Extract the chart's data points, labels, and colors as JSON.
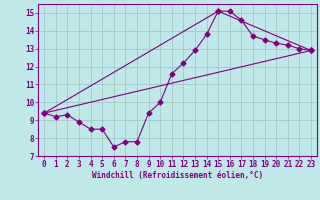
{
  "title": "",
  "xlabel": "Windchill (Refroidissement éolien,°C)",
  "bg_color": "#c0e8e8",
  "line_color": "#800080",
  "grid_color": "#9fbfbf",
  "xlim": [
    -0.5,
    23.5
  ],
  "ylim": [
    7,
    15.5
  ],
  "yticks": [
    7,
    8,
    9,
    10,
    11,
    12,
    13,
    14,
    15
  ],
  "xticks": [
    0,
    1,
    2,
    3,
    4,
    5,
    6,
    7,
    8,
    9,
    10,
    11,
    12,
    13,
    14,
    15,
    16,
    17,
    18,
    19,
    20,
    21,
    22,
    23
  ],
  "series1_x": [
    0,
    1,
    2,
    3,
    4,
    5,
    6,
    7,
    8,
    9,
    10,
    11,
    12,
    13,
    14,
    15,
    16,
    17,
    18,
    19,
    20,
    21,
    22,
    23
  ],
  "series1_y": [
    9.4,
    9.2,
    9.3,
    8.9,
    8.5,
    8.5,
    7.5,
    7.8,
    7.8,
    9.4,
    10.0,
    11.6,
    12.2,
    12.9,
    13.8,
    15.1,
    15.1,
    14.6,
    13.7,
    13.5,
    13.3,
    13.2,
    13.0,
    12.9
  ],
  "series2_x": [
    0,
    23
  ],
  "series2_y": [
    9.4,
    12.9
  ],
  "series3_x": [
    0,
    15,
    23
  ],
  "series3_y": [
    9.4,
    15.1,
    12.9
  ],
  "marker": "D",
  "markersize": 2.5,
  "linewidth": 0.8,
  "tick_fontsize": 5.5,
  "xlabel_fontsize": 5.5
}
